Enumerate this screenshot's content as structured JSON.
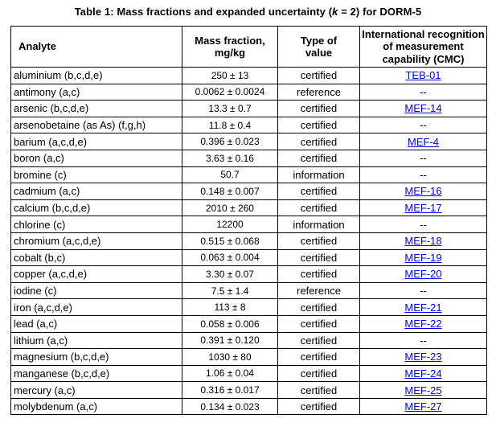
{
  "title": {
    "pre": "Table 1: Mass fractions and expanded uncertainty (",
    "k": "k",
    "post": " = 2) for DORM-5"
  },
  "colors": {
    "link": "#0000EE",
    "border": "#000000",
    "text": "#000000"
  },
  "table": {
    "headers": [
      {
        "lines": [
          "Analyte"
        ],
        "align": "left"
      },
      {
        "lines": [
          "Mass fraction,",
          "mg/kg"
        ],
        "align": "center"
      },
      {
        "lines": [
          "Type of",
          "value"
        ],
        "align": "center"
      },
      {
        "lines": [
          "International recognition",
          "of measurement",
          "capability (CMC)"
        ],
        "align": "center"
      }
    ],
    "rows": [
      {
        "analyte": "aluminium (b,c,d,e)",
        "mass_fraction": "250 ± 13",
        "type_of_value": "certified",
        "cmc": "TEB-01",
        "cmc_is_link": true
      },
      {
        "analyte": "antimony (a,c)",
        "mass_fraction": "0.0062 ± 0.0024",
        "type_of_value": "reference",
        "cmc": "--",
        "cmc_is_link": false
      },
      {
        "analyte": "arsenic (b,c,d,e)",
        "mass_fraction": "13.3 ± 0.7",
        "type_of_value": "certified",
        "cmc": "MEF-14",
        "cmc_is_link": true
      },
      {
        "analyte": "arsenobetaine (as As) (f,g,h)",
        "mass_fraction": "11.8 ± 0.4",
        "type_of_value": "certified",
        "cmc": "--",
        "cmc_is_link": false
      },
      {
        "analyte": "barium (a,c,d,e)",
        "mass_fraction": "0.396 ± 0.023",
        "type_of_value": "certified",
        "cmc": "MEF-4",
        "cmc_is_link": true
      },
      {
        "analyte": "boron (a,c)",
        "mass_fraction": "3.63 ± 0.16",
        "type_of_value": "certified",
        "cmc": "--",
        "cmc_is_link": false
      },
      {
        "analyte": "bromine (c)",
        "mass_fraction": "50.7",
        "type_of_value": "information",
        "cmc": "--",
        "cmc_is_link": false
      },
      {
        "analyte": "cadmium (a,c)",
        "mass_fraction": "0.148 ± 0.007",
        "type_of_value": "certified",
        "cmc": "MEF-16",
        "cmc_is_link": true
      },
      {
        "analyte": "calcium (b,c,d,e)",
        "mass_fraction": "2010 ± 260",
        "type_of_value": "certified",
        "cmc": "MEF-17",
        "cmc_is_link": true
      },
      {
        "analyte": "chlorine (c)",
        "mass_fraction": "12200",
        "type_of_value": "information",
        "cmc": "--",
        "cmc_is_link": false
      },
      {
        "analyte": "chromium (a,c,d,e)",
        "mass_fraction": "0.515 ± 0.068",
        "type_of_value": "certified",
        "cmc": "MEF-18",
        "cmc_is_link": true
      },
      {
        "analyte": "cobalt (b,c)",
        "mass_fraction": "0.063 ± 0.004",
        "type_of_value": "certified",
        "cmc": "MEF-19",
        "cmc_is_link": true
      },
      {
        "analyte": "copper (a,c,d,e)",
        "mass_fraction": "3.30 ± 0.07",
        "type_of_value": "certified",
        "cmc": "MEF-20",
        "cmc_is_link": true
      },
      {
        "analyte": "iodine (c)",
        "mass_fraction": "7.5 ± 1.4",
        "type_of_value": "reference",
        "cmc": "--",
        "cmc_is_link": false
      },
      {
        "analyte": "iron (a,c,d,e)",
        "mass_fraction": "113 ± 8",
        "type_of_value": "certified",
        "cmc": "MEF-21",
        "cmc_is_link": true
      },
      {
        "analyte": "lead (a,c)",
        "mass_fraction": "0.058 ± 0.006",
        "type_of_value": "certified",
        "cmc": "MEF-22",
        "cmc_is_link": true
      },
      {
        "analyte": "lithium (a,c)",
        "mass_fraction": "0.391 ± 0.120",
        "type_of_value": "certified",
        "cmc": "--",
        "cmc_is_link": false
      },
      {
        "analyte": "magnesium (b,c,d,e)",
        "mass_fraction": "1030 ± 80",
        "type_of_value": "certified",
        "cmc": "MEF-23",
        "cmc_is_link": true
      },
      {
        "analyte": "manganese (b,c,d,e)",
        "mass_fraction": "1.06 ± 0.04",
        "type_of_value": "certified",
        "cmc": "MEF-24",
        "cmc_is_link": true
      },
      {
        "analyte": "mercury (a,c)",
        "mass_fraction": "0.316 ± 0.017",
        "type_of_value": "certified",
        "cmc": "MEF-25",
        "cmc_is_link": true
      },
      {
        "analyte": "molybdenum (a,c)",
        "mass_fraction": "0.134 ± 0.023",
        "type_of_value": "certified",
        "cmc": "MEF-27",
        "cmc_is_link": true
      }
    ]
  }
}
